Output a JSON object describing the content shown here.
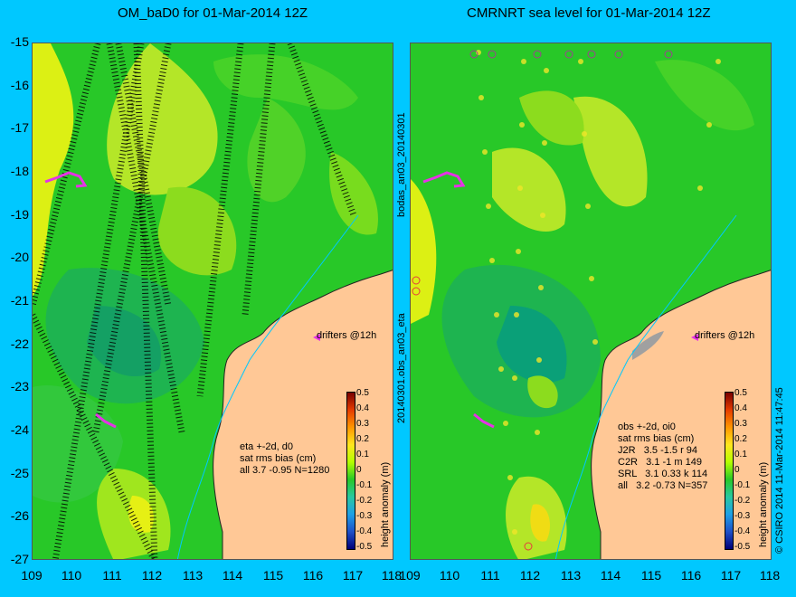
{
  "left_title": "OM_baD0 for 01-Mar-2014 12Z",
  "right_title": "CMRNRT sea level  for 01-Mar-2014 12Z",
  "y_ticks": [
    "-15",
    "-16",
    "-17",
    "-18",
    "-19",
    "-20",
    "-21",
    "-22",
    "-23",
    "-24",
    "-25",
    "-26",
    "-27"
  ],
  "left_x_ticks": [
    "109",
    "110",
    "111",
    "112",
    "113",
    "114",
    "115",
    "116",
    "117",
    "118"
  ],
  "right_x_ticks": [
    "109",
    "110",
    "111",
    "112",
    "113",
    "114",
    "115",
    "116",
    "117",
    "118"
  ],
  "left_annotation": "eta +-2d, d0\nsat rms bias (cm)\nall 3.7 -0.95 N=1280",
  "right_annotation": "obs +-2d, oi0\nsat rms bias (cm)\nJ2R   3.5 -1.5 r 94\nC2R   3.1 -1 m 149\nSRL   3.1 0.33 k 114\nall   3.2 -0.73 N=357",
  "drifters_label": "drifters @12h",
  "colorbar_ticks": [
    "0.5",
    "0.4",
    "0.3",
    "0.2",
    "0.1",
    "0",
    "-0.1",
    "-0.2",
    "-0.3",
    "-0.4",
    "-0.5"
  ],
  "colorbar_label": "height anomaly (m)",
  "vertical_label_top": "bodas_an03_20140301",
  "vertical_label_bottom": "20140301.obs_an03_eta",
  "credit": "© CSIRO 2014   11-Mar-2014 11:47:45",
  "colors": {
    "background": "#00c8ff",
    "ocean": "#1fc81f",
    "land": "#ffc896"
  }
}
